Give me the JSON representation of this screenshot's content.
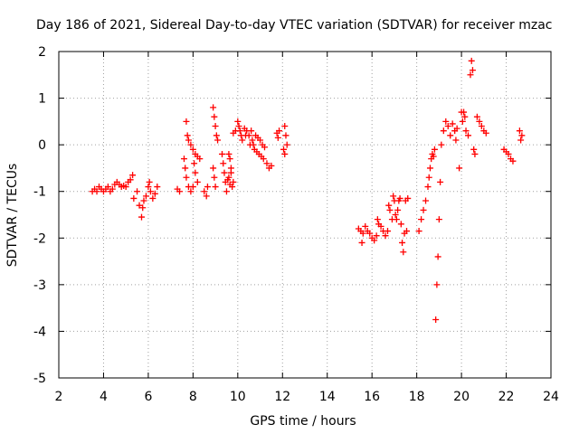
{
  "chart_data": {
    "type": "scatter",
    "title": "Day 186 of 2021, Sidereal Day-to-day VTEC variation (SDTVAR) for receiver mzac",
    "xlabel": "GPS time / hours",
    "ylabel": "SDTVAR / TECUs",
    "xlim": [
      2,
      24
    ],
    "ylim": [
      -5,
      2
    ],
    "xticks": [
      2,
      4,
      6,
      8,
      10,
      12,
      14,
      16,
      18,
      20,
      22,
      24
    ],
    "yticks": [
      -5,
      -4,
      -3,
      -2,
      -1,
      0,
      1,
      2
    ],
    "grid": true,
    "marker": "plus",
    "colors": {
      "series": "#ff0000",
      "grid": "#a0a0a0",
      "axes": "#000000"
    },
    "series": [
      {
        "name": "SDTVAR",
        "points": [
          [
            3.5,
            -1.0
          ],
          [
            3.6,
            -0.95
          ],
          [
            3.7,
            -1.0
          ],
          [
            3.8,
            -0.9
          ],
          [
            3.9,
            -0.95
          ],
          [
            4.0,
            -1.0
          ],
          [
            4.1,
            -0.95
          ],
          [
            4.2,
            -0.9
          ],
          [
            4.3,
            -1.0
          ],
          [
            4.4,
            -0.95
          ],
          [
            4.5,
            -0.85
          ],
          [
            4.6,
            -0.8
          ],
          [
            4.7,
            -0.85
          ],
          [
            4.8,
            -0.9
          ],
          [
            4.9,
            -0.88
          ],
          [
            5.0,
            -0.9
          ],
          [
            5.1,
            -0.8
          ],
          [
            5.2,
            -0.75
          ],
          [
            5.3,
            -0.65
          ],
          [
            5.35,
            -1.15
          ],
          [
            5.5,
            -1.0
          ],
          [
            5.6,
            -1.3
          ],
          [
            5.7,
            -1.55
          ],
          [
            5.75,
            -1.35
          ],
          [
            5.8,
            -1.2
          ],
          [
            5.9,
            -1.1
          ],
          [
            6.0,
            -0.9
          ],
          [
            6.05,
            -0.8
          ],
          [
            6.1,
            -1.0
          ],
          [
            6.2,
            -1.15
          ],
          [
            6.3,
            -1.05
          ],
          [
            6.4,
            -0.9
          ],
          [
            7.3,
            -0.95
          ],
          [
            7.4,
            -1.0
          ],
          [
            7.6,
            -0.3
          ],
          [
            7.65,
            -0.5
          ],
          [
            7.7,
            -0.7
          ],
          [
            7.8,
            -0.9
          ],
          [
            7.9,
            -1.0
          ],
          [
            8.0,
            -0.9
          ],
          [
            8.05,
            -0.4
          ],
          [
            8.1,
            -0.6
          ],
          [
            8.2,
            -0.8
          ],
          [
            7.7,
            0.5
          ],
          [
            7.75,
            0.2
          ],
          [
            7.8,
            0.1
          ],
          [
            7.9,
            0.0
          ],
          [
            8.0,
            -0.1
          ],
          [
            8.1,
            -0.2
          ],
          [
            8.2,
            -0.25
          ],
          [
            8.3,
            -0.3
          ],
          [
            8.5,
            -1.0
          ],
          [
            8.6,
            -1.1
          ],
          [
            8.65,
            -0.9
          ],
          [
            8.9,
            0.8
          ],
          [
            8.95,
            0.6
          ],
          [
            9.0,
            0.4
          ],
          [
            9.05,
            0.2
          ],
          [
            9.1,
            0.1
          ],
          [
            8.9,
            -0.5
          ],
          [
            8.95,
            -0.7
          ],
          [
            9.0,
            -0.9
          ],
          [
            9.3,
            -0.2
          ],
          [
            9.35,
            -0.4
          ],
          [
            9.4,
            -0.6
          ],
          [
            9.45,
            -0.8
          ],
          [
            9.5,
            -1.0
          ],
          [
            9.55,
            -0.75
          ],
          [
            9.6,
            -0.7
          ],
          [
            9.65,
            -0.85
          ],
          [
            9.7,
            -0.6
          ],
          [
            9.75,
            -0.9
          ],
          [
            9.8,
            -0.8
          ],
          [
            9.6,
            -0.2
          ],
          [
            9.65,
            -0.3
          ],
          [
            9.7,
            -0.5
          ],
          [
            9.8,
            0.25
          ],
          [
            9.9,
            0.3
          ],
          [
            10.0,
            0.5
          ],
          [
            10.05,
            0.4
          ],
          [
            10.1,
            0.3
          ],
          [
            10.15,
            0.2
          ],
          [
            10.2,
            0.1
          ],
          [
            10.3,
            0.35
          ],
          [
            10.35,
            0.2
          ],
          [
            10.4,
            0.3
          ],
          [
            10.5,
            0.2
          ],
          [
            10.55,
            0.0
          ],
          [
            10.6,
            0.3
          ],
          [
            10.65,
            0.1
          ],
          [
            10.7,
            0.0
          ],
          [
            10.75,
            -0.1
          ],
          [
            10.8,
            0.2
          ],
          [
            10.85,
            -0.15
          ],
          [
            10.9,
            0.15
          ],
          [
            10.95,
            -0.2
          ],
          [
            11.0,
            0.1
          ],
          [
            11.05,
            -0.25
          ],
          [
            11.1,
            0.0
          ],
          [
            11.15,
            -0.3
          ],
          [
            11.2,
            -0.05
          ],
          [
            11.3,
            -0.4
          ],
          [
            11.4,
            -0.5
          ],
          [
            11.5,
            -0.45
          ],
          [
            11.75,
            0.25
          ],
          [
            11.8,
            0.15
          ],
          [
            11.85,
            0.3
          ],
          [
            12.1,
            0.4
          ],
          [
            12.15,
            0.2
          ],
          [
            12.2,
            0.0
          ],
          [
            12.05,
            -0.1
          ],
          [
            12.1,
            -0.2
          ],
          [
            15.4,
            -1.8
          ],
          [
            15.5,
            -1.85
          ],
          [
            15.55,
            -2.1
          ],
          [
            15.6,
            -1.9
          ],
          [
            15.7,
            -1.75
          ],
          [
            15.8,
            -1.85
          ],
          [
            15.9,
            -1.9
          ],
          [
            16.0,
            -2.0
          ],
          [
            16.1,
            -2.05
          ],
          [
            16.2,
            -1.95
          ],
          [
            16.25,
            -1.6
          ],
          [
            16.3,
            -1.7
          ],
          [
            16.4,
            -1.75
          ],
          [
            16.5,
            -1.85
          ],
          [
            16.6,
            -1.95
          ],
          [
            16.7,
            -1.85
          ],
          [
            16.75,
            -1.3
          ],
          [
            16.8,
            -1.4
          ],
          [
            16.9,
            -1.6
          ],
          [
            16.95,
            -1.1
          ],
          [
            17.0,
            -1.2
          ],
          [
            17.05,
            -1.5
          ],
          [
            17.1,
            -1.6
          ],
          [
            17.15,
            -1.4
          ],
          [
            17.2,
            -1.2
          ],
          [
            17.25,
            -1.15
          ],
          [
            17.3,
            -1.7
          ],
          [
            17.35,
            -2.1
          ],
          [
            17.4,
            -2.3
          ],
          [
            17.45,
            -1.9
          ],
          [
            17.5,
            -1.2
          ],
          [
            17.55,
            -1.85
          ],
          [
            17.6,
            -1.15
          ],
          [
            18.1,
            -1.85
          ],
          [
            18.2,
            -1.6
          ],
          [
            18.3,
            -1.4
          ],
          [
            18.4,
            -1.2
          ],
          [
            18.5,
            -0.9
          ],
          [
            18.55,
            -0.7
          ],
          [
            18.6,
            -0.5
          ],
          [
            18.65,
            -0.3
          ],
          [
            18.7,
            -0.2
          ],
          [
            18.75,
            -0.25
          ],
          [
            18.8,
            -0.1
          ],
          [
            18.85,
            -3.75
          ],
          [
            18.9,
            -3.0
          ],
          [
            18.95,
            -2.4
          ],
          [
            19.0,
            -1.6
          ],
          [
            19.05,
            -0.8
          ],
          [
            19.1,
            0.0
          ],
          [
            19.2,
            0.3
          ],
          [
            19.3,
            0.5
          ],
          [
            19.4,
            0.4
          ],
          [
            19.5,
            0.2
          ],
          [
            19.6,
            0.45
          ],
          [
            19.7,
            0.3
          ],
          [
            19.75,
            0.1
          ],
          [
            19.8,
            0.35
          ],
          [
            19.9,
            -0.5
          ],
          [
            20.0,
            0.7
          ],
          [
            20.05,
            0.5
          ],
          [
            20.1,
            0.7
          ],
          [
            20.15,
            0.6
          ],
          [
            20.2,
            0.3
          ],
          [
            20.3,
            0.2
          ],
          [
            20.4,
            1.5
          ],
          [
            20.45,
            1.8
          ],
          [
            20.5,
            1.6
          ],
          [
            20.55,
            -0.1
          ],
          [
            20.6,
            -0.2
          ],
          [
            20.7,
            0.6
          ],
          [
            20.8,
            0.5
          ],
          [
            20.9,
            0.4
          ],
          [
            21.0,
            0.3
          ],
          [
            21.1,
            0.25
          ],
          [
            21.9,
            -0.1
          ],
          [
            22.0,
            -0.15
          ],
          [
            22.1,
            -0.2
          ],
          [
            22.2,
            -0.3
          ],
          [
            22.3,
            -0.35
          ],
          [
            22.6,
            0.3
          ],
          [
            22.65,
            0.1
          ],
          [
            22.7,
            0.2
          ]
        ]
      }
    ]
  }
}
